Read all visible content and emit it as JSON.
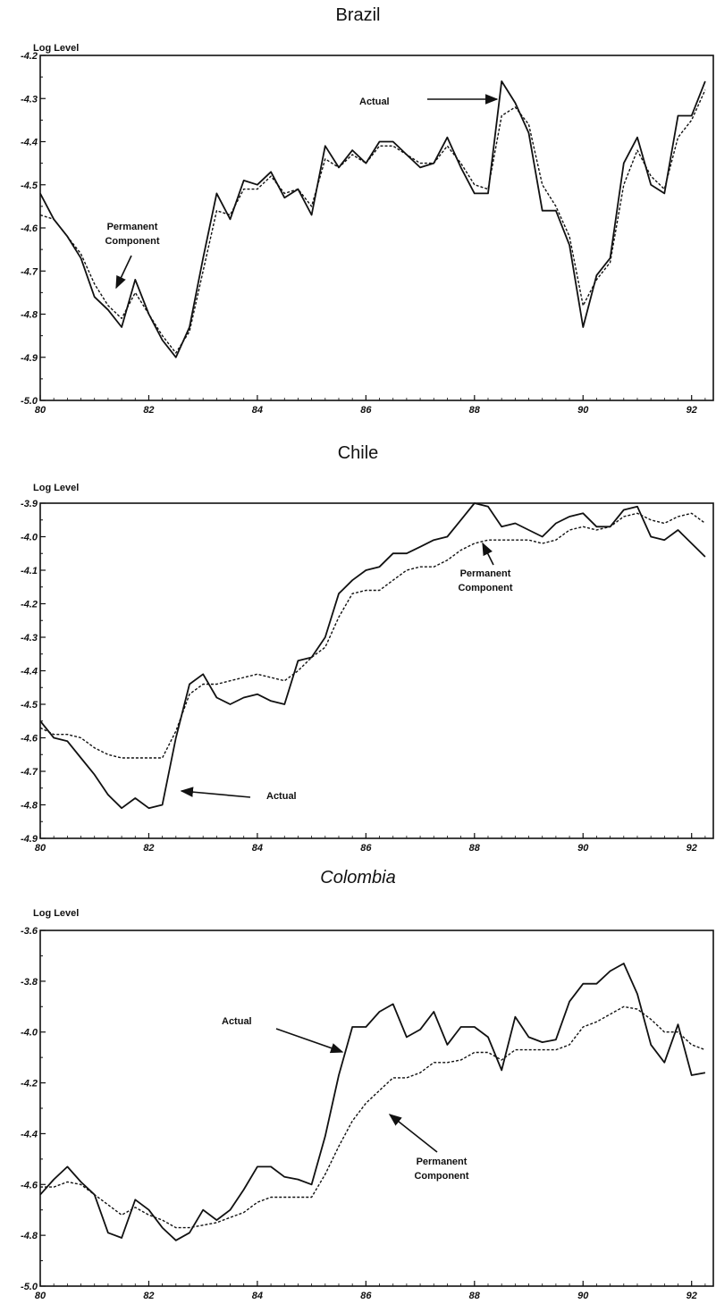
{
  "chart_data": [
    {
      "id": "brazil",
      "type": "line",
      "title": "Brazil",
      "ylabel": "Log Level",
      "xlabel": "",
      "xlim": [
        80,
        92.4
      ],
      "ylim": [
        -5.0,
        -4.2
      ],
      "xticks": [
        80,
        82,
        84,
        86,
        88,
        90,
        92
      ],
      "xtick_labels": [
        "80",
        "82",
        "84",
        "86",
        "88",
        "90",
        "92"
      ],
      "yticks": [
        -5.0,
        -4.9,
        -4.8,
        -4.7,
        -4.6,
        -4.5,
        -4.4,
        -4.3,
        -4.2
      ],
      "ytick_labels": [
        "-5.0",
        "-4.9",
        "-4.8",
        "-4.7",
        "-4.6",
        "-4.5",
        "-4.4",
        "-4.3",
        "-4.2"
      ],
      "grid": false,
      "series": [
        {
          "name": "Actual",
          "style": "solid",
          "x": [
            80,
            80.25,
            80.5,
            80.75,
            81,
            81.25,
            81.5,
            81.75,
            82,
            82.25,
            82.5,
            82.75,
            83,
            83.25,
            83.5,
            83.75,
            84,
            84.25,
            84.5,
            84.75,
            85,
            85.25,
            85.5,
            85.75,
            86,
            86.25,
            86.5,
            86.75,
            87,
            87.25,
            87.5,
            87.75,
            88,
            88.25,
            88.5,
            88.75,
            89,
            89.25,
            89.5,
            89.75,
            90,
            90.25,
            90.5,
            90.75,
            91,
            91.25,
            91.5,
            91.75,
            92,
            92.25
          ],
          "values": [
            -4.52,
            -4.58,
            -4.62,
            -4.67,
            -4.76,
            -4.79,
            -4.83,
            -4.72,
            -4.8,
            -4.86,
            -4.9,
            -4.83,
            -4.67,
            -4.52,
            -4.58,
            -4.49,
            -4.5,
            -4.47,
            -4.53,
            -4.51,
            -4.57,
            -4.41,
            -4.46,
            -4.42,
            -4.45,
            -4.4,
            -4.4,
            -4.43,
            -4.46,
            -4.45,
            -4.39,
            -4.46,
            -4.52,
            -4.52,
            -4.26,
            -4.31,
            -4.38,
            -4.56,
            -4.56,
            -4.64,
            -4.83,
            -4.71,
            -4.67,
            -4.45,
            -4.39,
            -4.5,
            -4.52,
            -4.34,
            -4.34,
            -4.26
          ]
        },
        {
          "name": "Permanent Component",
          "style": "dashed",
          "x": [
            80,
            80.25,
            80.5,
            80.75,
            81,
            81.25,
            81.5,
            81.75,
            82,
            82.25,
            82.5,
            82.75,
            83,
            83.25,
            83.5,
            83.75,
            84,
            84.25,
            84.5,
            84.75,
            85,
            85.25,
            85.5,
            85.75,
            86,
            86.25,
            86.5,
            86.75,
            87,
            87.25,
            87.5,
            87.75,
            88,
            88.25,
            88.5,
            88.75,
            89,
            89.25,
            89.5,
            89.75,
            90,
            90.25,
            90.5,
            90.75,
            91,
            91.25,
            91.5,
            91.75,
            92,
            92.25
          ],
          "values": [
            -4.57,
            -4.58,
            -4.62,
            -4.66,
            -4.73,
            -4.78,
            -4.81,
            -4.75,
            -4.8,
            -4.85,
            -4.89,
            -4.84,
            -4.7,
            -4.56,
            -4.57,
            -4.51,
            -4.51,
            -4.48,
            -4.52,
            -4.51,
            -4.55,
            -4.44,
            -4.46,
            -4.43,
            -4.45,
            -4.41,
            -4.41,
            -4.43,
            -4.45,
            -4.45,
            -4.41,
            -4.45,
            -4.5,
            -4.51,
            -4.34,
            -4.32,
            -4.36,
            -4.5,
            -4.55,
            -4.62,
            -4.78,
            -4.72,
            -4.68,
            -4.5,
            -4.42,
            -4.48,
            -4.51,
            -4.39,
            -4.35,
            -4.28
          ]
        }
      ],
      "annotations": [
        {
          "text": "Actual",
          "lines": [
            "Actual"
          ]
        },
        {
          "text": "Permanent Component",
          "lines": [
            "Permanent",
            "Component"
          ]
        }
      ]
    },
    {
      "id": "chile",
      "type": "line",
      "title": "Chile",
      "ylabel": "Log Level",
      "xlabel": "",
      "xlim": [
        80,
        92.4
      ],
      "ylim": [
        -4.9,
        -3.9
      ],
      "xticks": [
        80,
        82,
        84,
        86,
        88,
        90,
        92
      ],
      "xtick_labels": [
        "80",
        "82",
        "84",
        "86",
        "88",
        "90",
        "92"
      ],
      "yticks": [
        -4.9,
        -4.8,
        -4.7,
        -4.6,
        -4.5,
        -4.4,
        -4.3,
        -4.2,
        -4.1,
        -4.0,
        -3.9
      ],
      "ytick_labels": [
        "-4.9",
        "-4.8",
        "-4.7",
        "-4.6",
        "-4.5",
        "-4.4",
        "-4.3",
        "-4.2",
        "-4.1",
        "-4.0",
        "-3.9"
      ],
      "grid": false,
      "series": [
        {
          "name": "Actual",
          "style": "solid",
          "x": [
            80,
            80.25,
            80.5,
            80.75,
            81,
            81.25,
            81.5,
            81.75,
            82,
            82.25,
            82.5,
            82.75,
            83,
            83.25,
            83.5,
            83.75,
            84,
            84.25,
            84.5,
            84.75,
            85,
            85.25,
            85.5,
            85.75,
            86,
            86.25,
            86.5,
            86.75,
            87,
            87.25,
            87.5,
            87.75,
            88,
            88.25,
            88.5,
            88.75,
            89,
            89.25,
            89.5,
            89.75,
            90,
            90.25,
            90.5,
            90.75,
            91,
            91.25,
            91.5,
            91.75,
            92,
            92.25
          ],
          "values": [
            -4.55,
            -4.6,
            -4.61,
            -4.66,
            -4.71,
            -4.77,
            -4.81,
            -4.78,
            -4.81,
            -4.8,
            -4.6,
            -4.44,
            -4.41,
            -4.48,
            -4.5,
            -4.48,
            -4.47,
            -4.49,
            -4.5,
            -4.37,
            -4.36,
            -4.3,
            -4.17,
            -4.13,
            -4.1,
            -4.09,
            -4.05,
            -4.05,
            -4.03,
            -4.01,
            -4.0,
            -3.95,
            -3.9,
            -3.91,
            -3.97,
            -3.96,
            -3.98,
            -4.0,
            -3.96,
            -3.94,
            -3.93,
            -3.97,
            -3.97,
            -3.92,
            -3.91,
            -4.0,
            -4.01,
            -3.98,
            -4.02,
            -4.06
          ]
        },
        {
          "name": "Permanent Component",
          "style": "dashed",
          "x": [
            80,
            80.25,
            80.5,
            80.75,
            81,
            81.25,
            81.5,
            81.75,
            82,
            82.25,
            82.5,
            82.75,
            83,
            83.25,
            83.5,
            83.75,
            84,
            84.25,
            84.5,
            84.75,
            85,
            85.25,
            85.5,
            85.75,
            86,
            86.25,
            86.5,
            86.75,
            87,
            87.25,
            87.5,
            87.75,
            88,
            88.25,
            88.5,
            88.75,
            89,
            89.25,
            89.5,
            89.75,
            90,
            90.25,
            90.5,
            90.75,
            91,
            91.25,
            91.5,
            91.75,
            92,
            92.25
          ],
          "values": [
            -4.57,
            -4.59,
            -4.59,
            -4.6,
            -4.63,
            -4.65,
            -4.66,
            -4.66,
            -4.66,
            -4.66,
            -4.58,
            -4.47,
            -4.44,
            -4.44,
            -4.43,
            -4.42,
            -4.41,
            -4.42,
            -4.43,
            -4.4,
            -4.36,
            -4.33,
            -4.24,
            -4.17,
            -4.16,
            -4.16,
            -4.13,
            -4.1,
            -4.09,
            -4.09,
            -4.07,
            -4.04,
            -4.02,
            -4.01,
            -4.01,
            -4.01,
            -4.01,
            -4.02,
            -4.01,
            -3.98,
            -3.97,
            -3.98,
            -3.97,
            -3.94,
            -3.93,
            -3.95,
            -3.96,
            -3.94,
            -3.93,
            -3.96
          ]
        }
      ],
      "annotations": [
        {
          "text": "Permanent Component",
          "lines": [
            "Permanent",
            "Component"
          ]
        },
        {
          "text": "Actual",
          "lines": [
            "Actual"
          ]
        }
      ]
    },
    {
      "id": "colombia",
      "type": "line",
      "title": "Colombia",
      "ylabel": "Log Level",
      "xlabel": "",
      "xlim": [
        80,
        92.4
      ],
      "ylim": [
        -5.0,
        -3.6
      ],
      "xticks": [
        80,
        82,
        84,
        86,
        88,
        90,
        92
      ],
      "xtick_labels": [
        "80",
        "82",
        "84",
        "86",
        "88",
        "90",
        "92"
      ],
      "yticks": [
        -5.0,
        -4.8,
        -4.6,
        -4.4,
        -4.2,
        -4.0,
        -3.8,
        -3.6
      ],
      "ytick_labels": [
        "-5.0",
        "-4.8",
        "-4.6",
        "-4.4",
        "-4.2",
        "-4.0",
        "-3.8",
        "-3.6"
      ],
      "grid": false,
      "series": [
        {
          "name": "Actual",
          "style": "solid",
          "x": [
            80,
            80.25,
            80.5,
            80.75,
            81,
            81.25,
            81.5,
            81.75,
            82,
            82.25,
            82.5,
            82.75,
            83,
            83.25,
            83.5,
            83.75,
            84,
            84.25,
            84.5,
            84.75,
            85,
            85.25,
            85.5,
            85.75,
            86,
            86.25,
            86.5,
            86.75,
            87,
            87.25,
            87.5,
            87.75,
            88,
            88.25,
            88.5,
            88.75,
            89,
            89.25,
            89.5,
            89.75,
            90,
            90.25,
            90.5,
            90.75,
            91,
            91.25,
            91.5,
            91.75,
            92,
            92.25
          ],
          "values": [
            -4.64,
            -4.58,
            -4.53,
            -4.59,
            -4.64,
            -4.79,
            -4.81,
            -4.66,
            -4.7,
            -4.77,
            -4.82,
            -4.79,
            -4.7,
            -4.74,
            -4.7,
            -4.62,
            -4.53,
            -4.53,
            -4.57,
            -4.58,
            -4.6,
            -4.41,
            -4.17,
            -3.98,
            -3.98,
            -3.92,
            -3.89,
            -4.02,
            -3.99,
            -3.92,
            -4.05,
            -3.98,
            -3.98,
            -4.02,
            -4.15,
            -3.94,
            -4.02,
            -4.04,
            -4.03,
            -3.88,
            -3.81,
            -3.81,
            -3.76,
            -3.73,
            -3.85,
            -4.05,
            -4.12,
            -3.97,
            -4.17,
            -4.16
          ]
        },
        {
          "name": "Permanent Component",
          "style": "dashed",
          "x": [
            80,
            80.25,
            80.5,
            80.75,
            81,
            81.25,
            81.5,
            81.75,
            82,
            82.25,
            82.5,
            82.75,
            83,
            83.25,
            83.5,
            83.75,
            84,
            84.25,
            84.5,
            84.75,
            85,
            85.25,
            85.5,
            85.75,
            86,
            86.25,
            86.5,
            86.75,
            87,
            87.25,
            87.5,
            87.75,
            88,
            88.25,
            88.5,
            88.75,
            89,
            89.25,
            89.5,
            89.75,
            90,
            90.25,
            90.5,
            90.75,
            91,
            91.25,
            91.5,
            91.75,
            92,
            92.25
          ],
          "values": [
            -4.61,
            -4.61,
            -4.59,
            -4.6,
            -4.64,
            -4.68,
            -4.72,
            -4.69,
            -4.72,
            -4.74,
            -4.77,
            -4.77,
            -4.76,
            -4.75,
            -4.73,
            -4.71,
            -4.67,
            -4.65,
            -4.65,
            -4.65,
            -4.65,
            -4.56,
            -4.45,
            -4.35,
            -4.28,
            -4.23,
            -4.18,
            -4.18,
            -4.16,
            -4.12,
            -4.12,
            -4.11,
            -4.08,
            -4.08,
            -4.11,
            -4.07,
            -4.07,
            -4.07,
            -4.07,
            -4.05,
            -3.98,
            -3.96,
            -3.93,
            -3.9,
            -3.91,
            -3.95,
            -4.0,
            -4.0,
            -4.05,
            -4.07
          ]
        }
      ],
      "annotations": [
        {
          "text": "Actual",
          "lines": [
            "Actual"
          ]
        },
        {
          "text": "Permanent Component",
          "lines": [
            "Permanent",
            "Component"
          ]
        }
      ]
    }
  ]
}
